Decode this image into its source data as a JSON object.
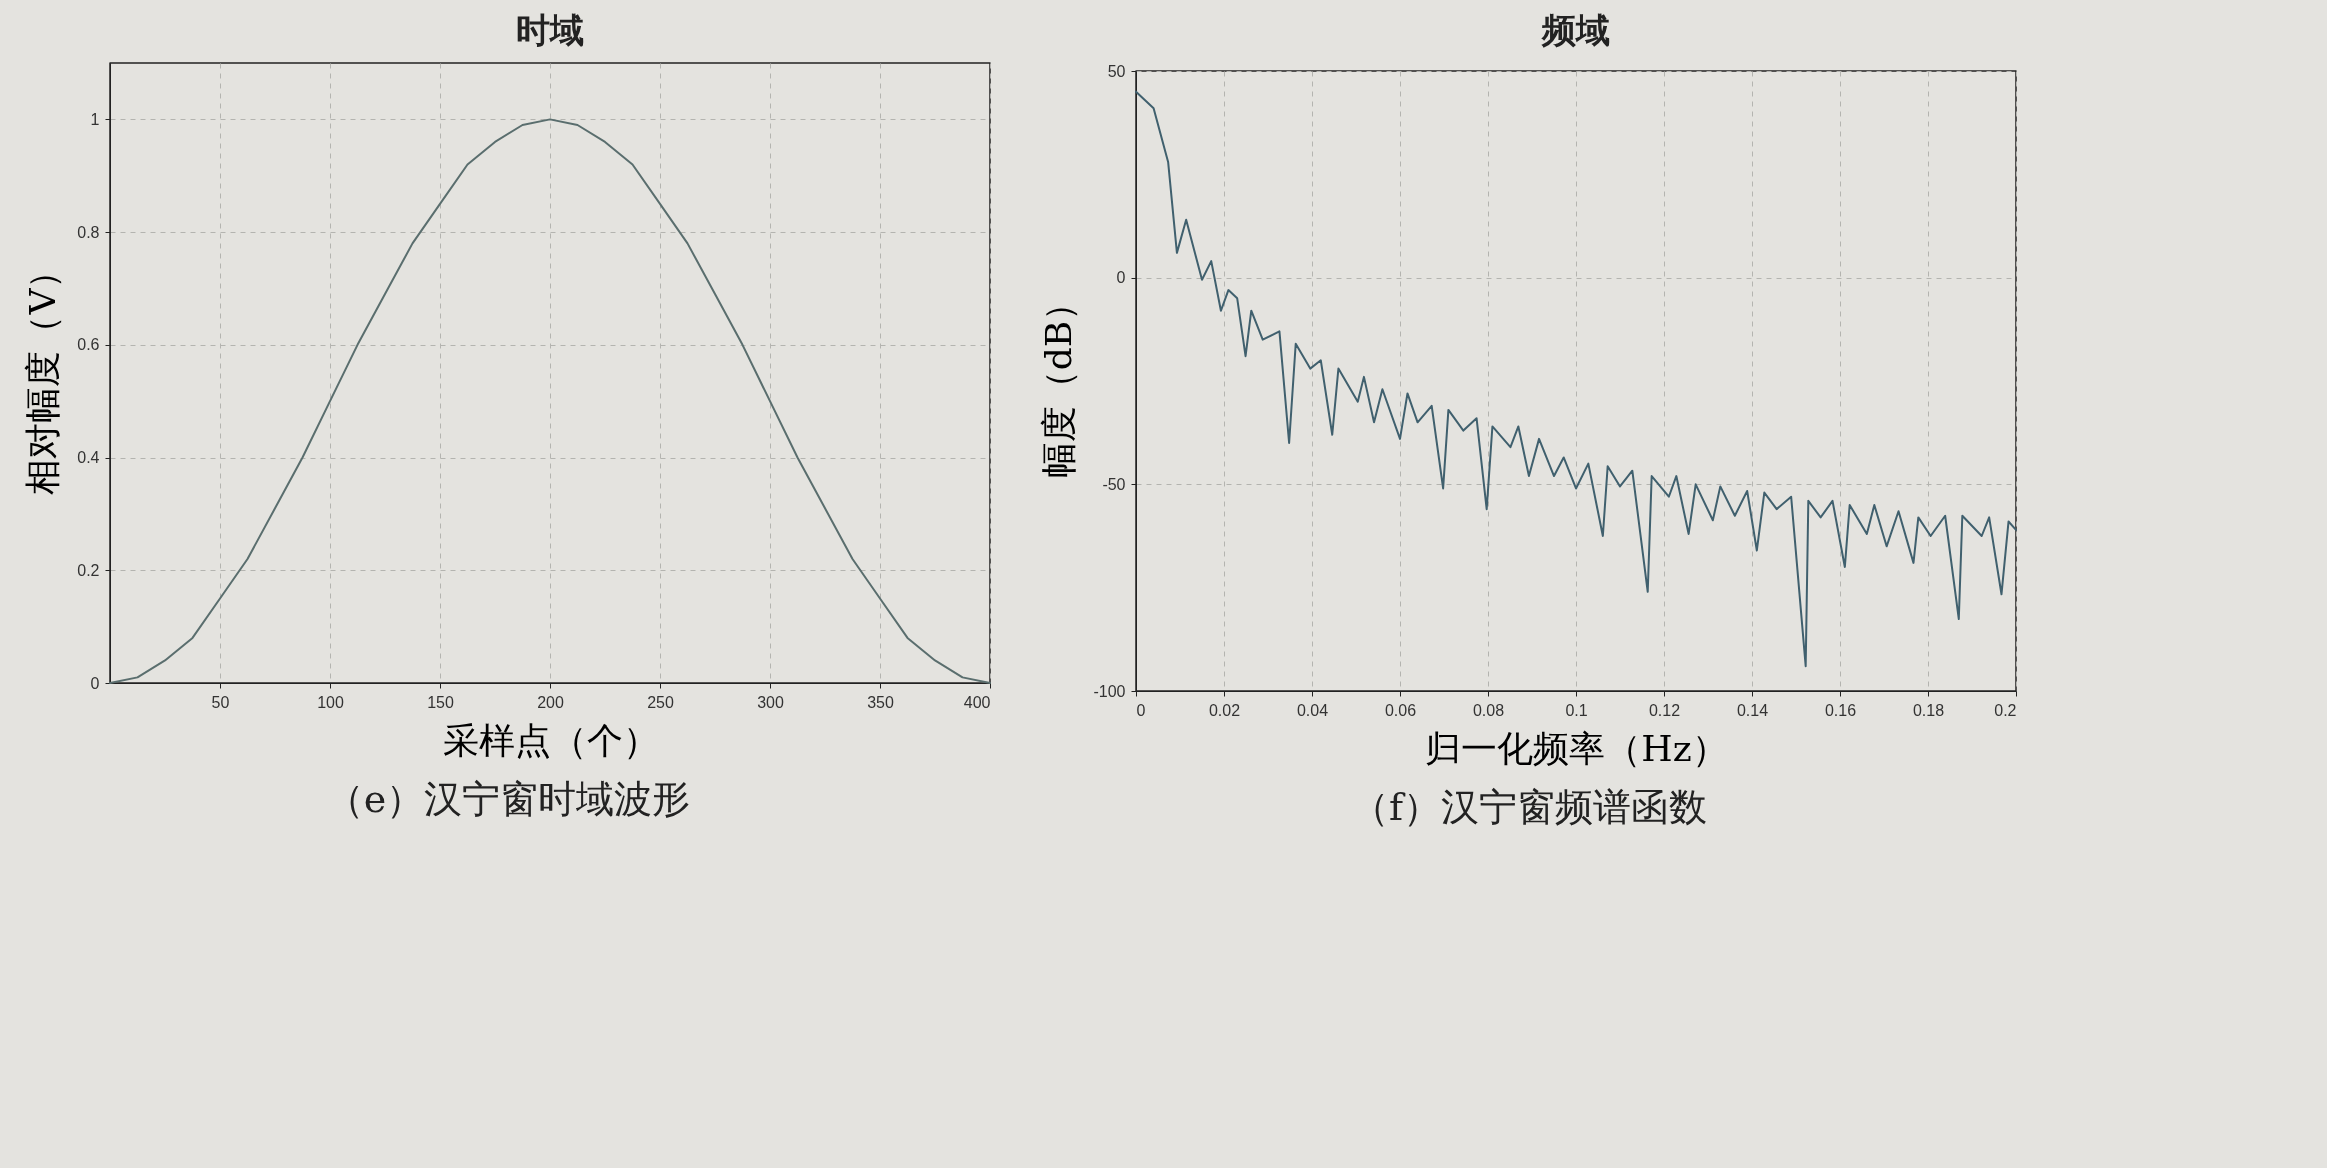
{
  "chart_data": [
    {
      "type": "line",
      "title": "时域",
      "xlabel": "采样点（个）",
      "ylabel": "相对幅度（V）",
      "annotations": [
        "（e）汉宁窗时域波形"
      ],
      "x": [
        0,
        12.5,
        25,
        37.5,
        50,
        62.5,
        75,
        87.5,
        100,
        112.5,
        125,
        137.5,
        150,
        162.5,
        175,
        187.5,
        200,
        212.5,
        225,
        237.5,
        250,
        262.5,
        275,
        287.5,
        300,
        312.5,
        325,
        337.5,
        350,
        362.5,
        375,
        387.5,
        400
      ],
      "values": [
        0,
        0.01,
        0.04,
        0.08,
        0.15,
        0.22,
        0.31,
        0.4,
        0.5,
        0.6,
        0.69,
        0.78,
        0.85,
        0.92,
        0.96,
        0.99,
        1.0,
        0.99,
        0.96,
        0.92,
        0.85,
        0.78,
        0.69,
        0.6,
        0.5,
        0.4,
        0.31,
        0.22,
        0.15,
        0.08,
        0.04,
        0.01,
        0
      ],
      "color": "#5a6e6e",
      "xlim": [
        0,
        400
      ],
      "xticks": [
        50,
        100,
        150,
        200,
        250,
        300,
        350,
        400
      ],
      "ylim": [
        0,
        1.1
      ],
      "yticks": [
        0,
        0.2,
        0.4,
        0.6,
        0.8,
        1
      ],
      "grid": true
    },
    {
      "type": "line",
      "title": "频域",
      "xlabel": "归一化频率（Hz）",
      "ylabel": "幅度（dB）",
      "annotations": [
        "（f）汉宁窗频谱函数"
      ],
      "x": [
        0,
        0.004,
        0.0073,
        0.0093,
        0.0114,
        0.015,
        0.0171,
        0.0193,
        0.021,
        0.023,
        0.0249,
        0.0262,
        0.0288,
        0.0326,
        0.0348,
        0.0363,
        0.0396,
        0.042,
        0.0446,
        0.046,
        0.0504,
        0.0518,
        0.0541,
        0.056,
        0.06,
        0.0617,
        0.064,
        0.0672,
        0.0698,
        0.071,
        0.0744,
        0.0774,
        0.0797,
        0.081,
        0.0851,
        0.0869,
        0.0893,
        0.0916,
        0.095,
        0.0972,
        0.1,
        0.1028,
        0.1061,
        0.1072,
        0.11,
        0.1128,
        0.1163,
        0.1172,
        0.1211,
        0.1228,
        0.1256,
        0.1272,
        0.1311,
        0.1328,
        0.1361,
        0.1389,
        0.1411,
        0.1428,
        0.1456,
        0.1489,
        0.1522,
        0.1528,
        0.1556,
        0.1583,
        0.1611,
        0.1622,
        0.1661,
        0.1678,
        0.1706,
        0.1733,
        0.1767,
        0.1778,
        0.1806,
        0.1839,
        0.187,
        0.1878,
        0.1922,
        0.1939,
        0.1967,
        0.1983,
        0.2
      ],
      "values": [
        45,
        41,
        28,
        6,
        14,
        -0.5,
        4,
        -8,
        -3,
        -5,
        -19,
        -8,
        -15,
        -13,
        -40,
        -16,
        -22,
        -20,
        -38,
        -22,
        -30,
        -24,
        -35,
        -27,
        -39,
        -28,
        -35,
        -31,
        -51,
        -32,
        -37,
        -34,
        -56,
        -36,
        -41,
        -36,
        -48,
        -39,
        -48,
        -43.5,
        -51,
        -45,
        -62.5,
        -45.6,
        -50.5,
        -46.7,
        -76,
        -48,
        -53,
        -48,
        -62,
        -50,
        -58.7,
        -50.5,
        -57.6,
        -51.6,
        -66,
        -52,
        -56,
        -53,
        -94,
        -54,
        -58,
        -54,
        -70,
        -55,
        -62,
        -55,
        -65,
        -56.5,
        -69,
        -58,
        -62.5,
        -57.6,
        -82.6,
        -57.6,
        -62.5,
        -58,
        -76.6,
        -59,
        -61
      ],
      "color": "#40606e",
      "xlim": [
        0,
        0.2
      ],
      "xticks": [
        0,
        0.02,
        0.04,
        0.06,
        0.08,
        0.1,
        0.12,
        0.14,
        0.16,
        0.18,
        0.2
      ],
      "ylim": [
        -100,
        50
      ],
      "yticks": [
        -100,
        -50,
        0,
        50
      ],
      "grid": true
    }
  ]
}
